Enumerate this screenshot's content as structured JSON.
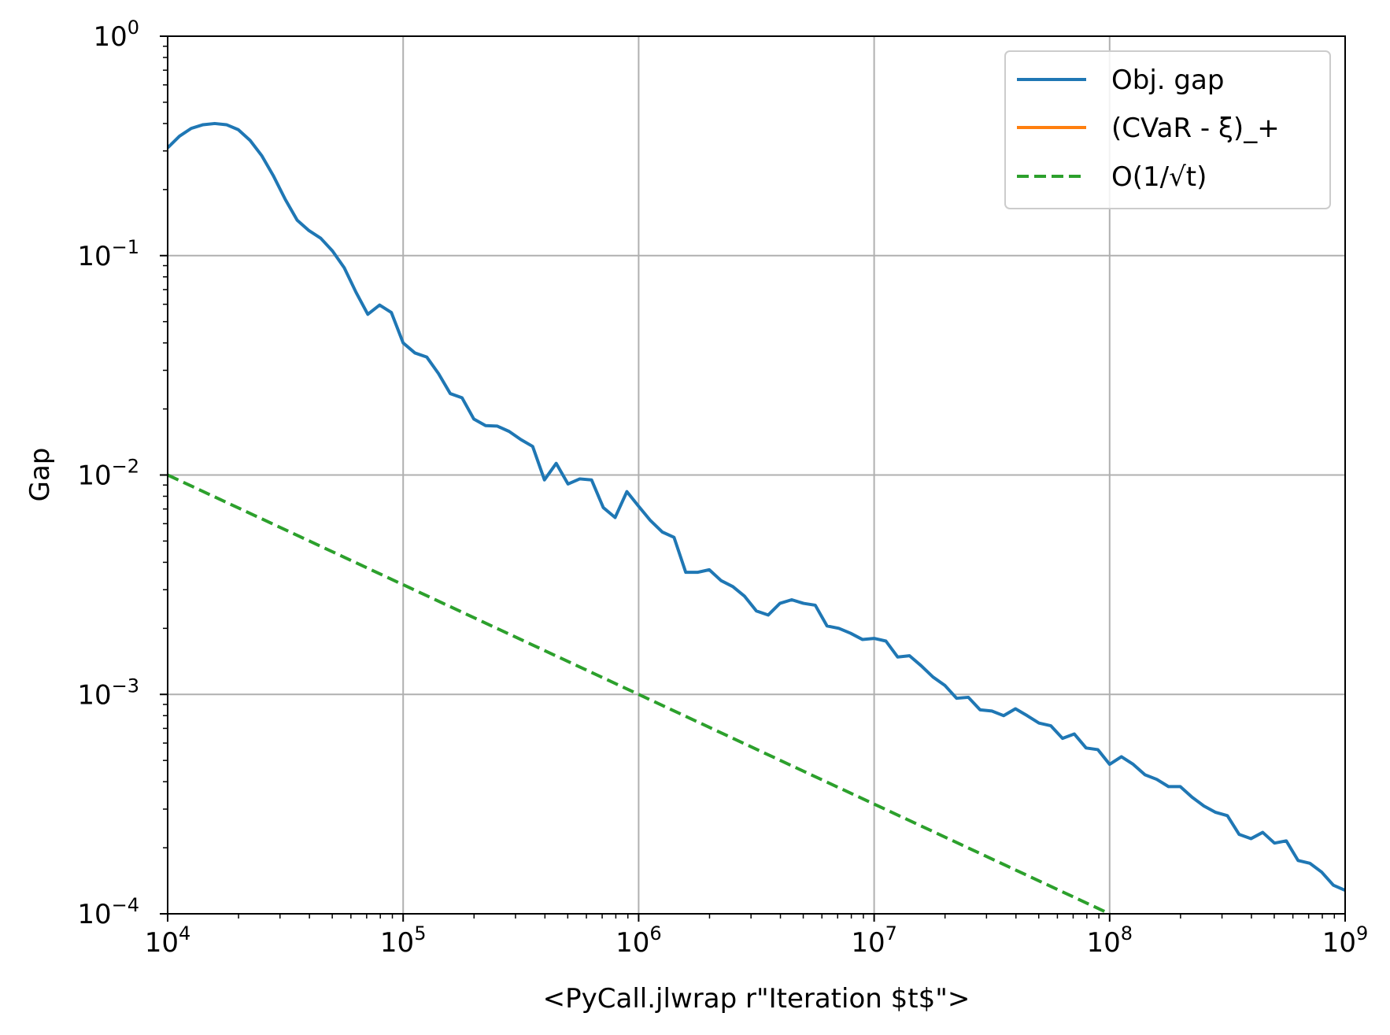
{
  "chart_data": {
    "type": "line",
    "xscale": "log",
    "yscale": "log",
    "xlim": [
      10000,
      1000000000
    ],
    "ylim": [
      0.0001,
      1
    ],
    "xlabel": "<PyCall.jlwrap r\"Iteration $t$\">",
    "ylabel": "Gap",
    "grid": true,
    "legend_location": "top-right",
    "x_ticks": [
      {
        "base": "10",
        "exp": "4",
        "value": 10000
      },
      {
        "base": "10",
        "exp": "5",
        "value": 100000
      },
      {
        "base": "10",
        "exp": "6",
        "value": 1000000
      },
      {
        "base": "10",
        "exp": "7",
        "value": 10000000
      },
      {
        "base": "10",
        "exp": "8",
        "value": 100000000
      },
      {
        "base": "10",
        "exp": "9",
        "value": 1000000000
      }
    ],
    "y_ticks": [
      {
        "base": "10",
        "exp": "0",
        "value": 1
      },
      {
        "base": "10",
        "exp": "−1",
        "value": 0.1
      },
      {
        "base": "10",
        "exp": "−2",
        "value": 0.01
      },
      {
        "base": "10",
        "exp": "−3",
        "value": 0.001
      },
      {
        "base": "10",
        "exp": "−4",
        "value": 0.0001
      }
    ],
    "series": [
      {
        "name": "Obj. gap",
        "color": "#1f77b4",
        "dash": "solid",
        "x": [
          10000,
          11220,
          12590,
          14130,
          15850,
          17780,
          19950,
          22390,
          25120,
          28180,
          31620,
          35480,
          39810,
          44670,
          50120,
          56230,
          63100,
          70790,
          79430,
          89130,
          100000,
          112200,
          125900,
          141300,
          158500,
          177800,
          199500,
          223900,
          251200,
          281800,
          316200,
          354800,
          398100,
          446700,
          501200,
          562300,
          631000,
          707900,
          794300,
          891300,
          1000000,
          1122000,
          1259000,
          1413000,
          1585000,
          1778000,
          1995000,
          2239000,
          2512000,
          2818000,
          3162000,
          3548000,
          3981000,
          4467000,
          5012000,
          5623000,
          6310000,
          7079000,
          7943000,
          8913000,
          10000000,
          11220000,
          12590000,
          14130000,
          15850000,
          17780000,
          19950000,
          22390000,
          25120000,
          28180000,
          31620000,
          35480000,
          39810000,
          44670000,
          50120000,
          56230000,
          63100000,
          70790000,
          79430000,
          89130000,
          100000000,
          112200000,
          125900000,
          141300000,
          158500000,
          177800000,
          199500000,
          223900000,
          251200000,
          281800000,
          316200000,
          354800000,
          398100000,
          446700000,
          501200000,
          562300000,
          631000000,
          707900000,
          794300000,
          891300000,
          1000000000
        ],
        "y": [
          0.31,
          0.35,
          0.38,
          0.395,
          0.4,
          0.395,
          0.375,
          0.335,
          0.285,
          0.23,
          0.18,
          0.145,
          0.13,
          0.12,
          0.105,
          0.088,
          0.068,
          0.054,
          0.0595,
          0.055,
          0.04,
          0.036,
          0.0345,
          0.029,
          0.0235,
          0.0225,
          0.018,
          0.0168,
          0.0167,
          0.0158,
          0.0145,
          0.0135,
          0.0095,
          0.0113,
          0.0091,
          0.0096,
          0.0095,
          0.0071,
          0.0064,
          0.0084,
          0.0072,
          0.0062,
          0.0055,
          0.0052,
          0.0036,
          0.0036,
          0.0037,
          0.0033,
          0.0031,
          0.0028,
          0.0024,
          0.0023,
          0.0026,
          0.0027,
          0.0026,
          0.00255,
          0.00205,
          0.002,
          0.0019,
          0.00178,
          0.0018,
          0.00175,
          0.00148,
          0.0015,
          0.00135,
          0.0012,
          0.0011,
          0.00096,
          0.00097,
          0.00085,
          0.00084,
          0.0008,
          0.00086,
          0.0008,
          0.00074,
          0.00072,
          0.00063,
          0.00066,
          0.00057,
          0.00056,
          0.00048,
          0.00052,
          0.00048,
          0.00043,
          0.00041,
          0.00038,
          0.00038,
          0.00034,
          0.00031,
          0.00029,
          0.00028,
          0.00023,
          0.00022,
          0.000235,
          0.00021,
          0.000215,
          0.000175,
          0.00017,
          0.000155,
          0.000135,
          0.000128
        ]
      },
      {
        "name": "(CVaR - ξ)_+",
        "color": "#ff7f0e",
        "dash": "solid",
        "x": [],
        "y": []
      },
      {
        "name": "O(1/√t)",
        "color": "#2ca02c",
        "dash": "dashed",
        "x": [
          10000,
          100000000
        ],
        "y": [
          0.01,
          0.0001
        ]
      }
    ]
  }
}
